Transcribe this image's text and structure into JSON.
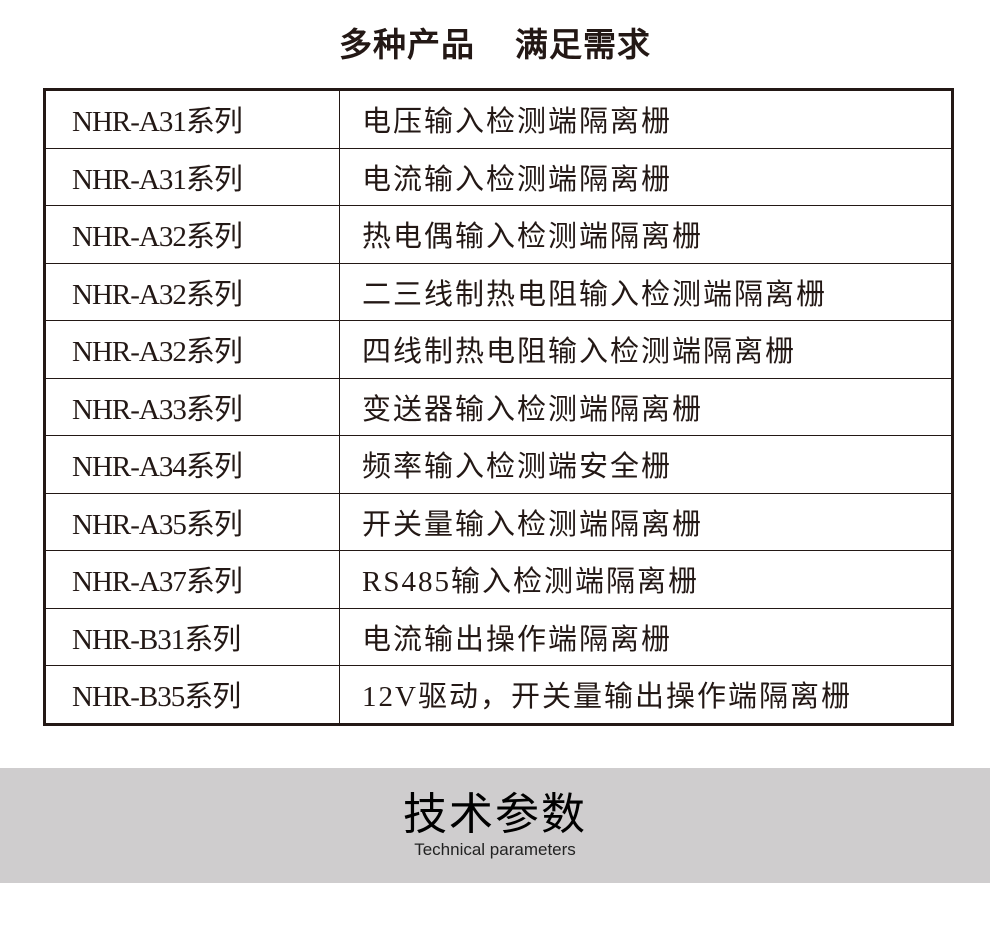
{
  "header": {
    "title_part1": "多种产品",
    "title_part2": "满足需求"
  },
  "products": [
    {
      "series": "NHR-A31系列",
      "desc": "电压输入检测端隔离栅"
    },
    {
      "series": "NHR-A31系列",
      "desc": "电流输入检测端隔离栅"
    },
    {
      "series": "NHR-A32系列",
      "desc": "热电偶输入检测端隔离栅"
    },
    {
      "series": "NHR-A32系列",
      "desc": "二三线制热电阻输入检测端隔离栅"
    },
    {
      "series": "NHR-A32系列",
      "desc": "四线制热电阻输入检测端隔离栅"
    },
    {
      "series": "NHR-A33系列",
      "desc": "变送器输入检测端隔离栅"
    },
    {
      "series": "NHR-A34系列",
      "desc": "频率输入检测端安全栅"
    },
    {
      "series": "NHR-A35系列",
      "desc": "开关量输入检测端隔离栅"
    },
    {
      "series": "NHR-A37系列",
      "desc": "RS485输入检测端隔离栅"
    },
    {
      "series": "NHR-B31系列",
      "desc": "电流输出操作端隔离栅"
    },
    {
      "series": "NHR-B35系列",
      "desc": "12V驱动，开关量输出操作端隔离栅"
    }
  ],
  "section": {
    "title": "技术参数",
    "subtitle": "Technical parameters"
  }
}
